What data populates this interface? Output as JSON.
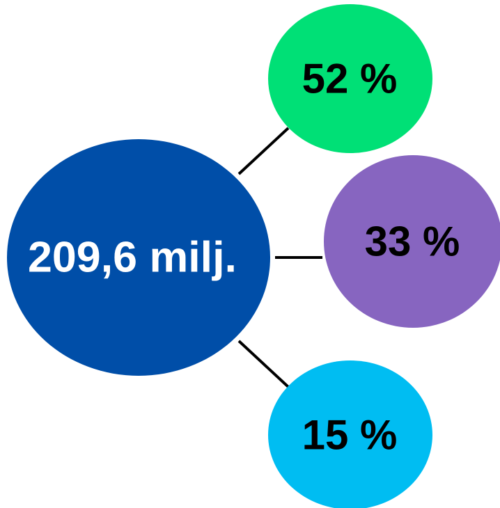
{
  "center": {
    "label": "209,6 milj.",
    "color": "#004ea8",
    "text_color": "#ffffff"
  },
  "branches": [
    {
      "label": "52 %",
      "color": "#00e076",
      "text_color": "#000000"
    },
    {
      "label": "33 %",
      "color": "#8765c0",
      "text_color": "#000000"
    },
    {
      "label": "15 %",
      "color": "#00bdf2",
      "text_color": "#000000"
    }
  ],
  "connector_color": "#000000"
}
